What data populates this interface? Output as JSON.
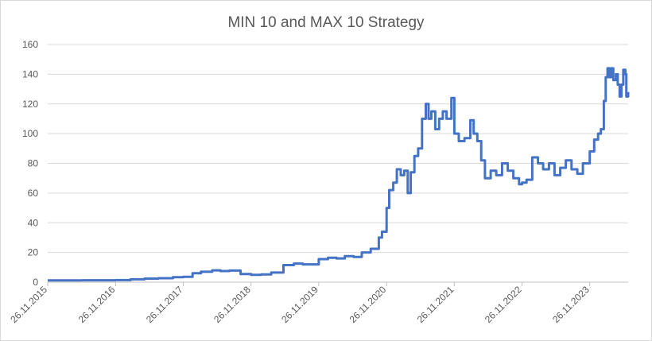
{
  "chart_data": {
    "type": "line",
    "title": "MIN 10 and MAX 10 Strategy",
    "xlabel": "",
    "ylabel": "",
    "xlim": [
      "2015-11-26",
      "2024-06-20"
    ],
    "ylim": [
      0,
      160
    ],
    "yticks": [
      0,
      20,
      40,
      60,
      80,
      100,
      120,
      140,
      160
    ],
    "xtick_labels": [
      "26.11.2015",
      "26.11.2016",
      "26.11.2017",
      "26.11.2018",
      "26.11.2019",
      "26.11.2020",
      "26.11.2021",
      "26.11.2022",
      "26.11.2023"
    ],
    "grid": true,
    "legend": "none",
    "series": [
      {
        "color": "#4472C4",
        "points": [
          [
            "2015-11-26",
            1.2
          ],
          [
            "2016-05-26",
            1.3
          ],
          [
            "2016-11-26",
            1.4
          ],
          [
            "2017-02-15",
            1.9
          ],
          [
            "2017-05-01",
            2.4
          ],
          [
            "2017-07-15",
            2.7
          ],
          [
            "2017-10-01",
            3.3
          ],
          [
            "2017-11-26",
            3.6
          ],
          [
            "2018-01-15",
            6.0
          ],
          [
            "2018-03-01",
            7.0
          ],
          [
            "2018-05-01",
            8.0
          ],
          [
            "2018-06-15",
            7.5
          ],
          [
            "2018-08-01",
            7.8
          ],
          [
            "2018-10-01",
            5.5
          ],
          [
            "2018-11-26",
            5.0
          ],
          [
            "2019-01-20",
            5.2
          ],
          [
            "2019-03-15",
            6.5
          ],
          [
            "2019-05-20",
            11.5
          ],
          [
            "2019-07-15",
            12.5
          ],
          [
            "2019-09-01",
            12.0
          ],
          [
            "2019-11-26",
            15.5
          ],
          [
            "2020-01-15",
            16.5
          ],
          [
            "2020-03-01",
            16.0
          ],
          [
            "2020-04-15",
            17.5
          ],
          [
            "2020-06-01",
            17.0
          ],
          [
            "2020-07-15",
            20.0
          ],
          [
            "2020-09-01",
            22.5
          ],
          [
            "2020-10-15",
            30.0
          ],
          [
            "2020-11-01",
            34.0
          ],
          [
            "2020-11-26",
            50.0
          ],
          [
            "2020-12-10",
            62.0
          ],
          [
            "2021-01-01",
            67.0
          ],
          [
            "2021-01-20",
            76.0
          ],
          [
            "2021-02-10",
            72.0
          ],
          [
            "2021-03-01",
            75.0
          ],
          [
            "2021-03-20",
            60.0
          ],
          [
            "2021-04-05",
            74.0
          ],
          [
            "2021-04-25",
            85.0
          ],
          [
            "2021-05-15",
            90.0
          ],
          [
            "2021-06-05",
            110.0
          ],
          [
            "2021-06-25",
            120.0
          ],
          [
            "2021-07-10",
            110.0
          ],
          [
            "2021-07-25",
            115.0
          ],
          [
            "2021-08-15",
            103.0
          ],
          [
            "2021-09-05",
            110.0
          ],
          [
            "2021-09-25",
            115.0
          ],
          [
            "2021-10-15",
            110.0
          ],
          [
            "2021-11-10",
            124.0
          ],
          [
            "2021-11-26",
            100.0
          ],
          [
            "2021-12-20",
            95.0
          ],
          [
            "2022-01-20",
            97.0
          ],
          [
            "2022-02-20",
            109.0
          ],
          [
            "2022-03-10",
            100.0
          ],
          [
            "2022-03-30",
            95.0
          ],
          [
            "2022-04-20",
            82.0
          ],
          [
            "2022-05-10",
            70.0
          ],
          [
            "2022-06-10",
            75.0
          ],
          [
            "2022-07-10",
            72.0
          ],
          [
            "2022-08-10",
            80.0
          ],
          [
            "2022-09-10",
            75.0
          ],
          [
            "2022-10-10",
            70.0
          ],
          [
            "2022-11-10",
            66.0
          ],
          [
            "2022-11-26",
            67.0
          ],
          [
            "2022-12-20",
            69.0
          ],
          [
            "2023-01-20",
            84.0
          ],
          [
            "2023-02-20",
            80.0
          ],
          [
            "2023-03-20",
            76.0
          ],
          [
            "2023-04-20",
            80.0
          ],
          [
            "2023-05-20",
            72.0
          ],
          [
            "2023-06-20",
            77.0
          ],
          [
            "2023-07-20",
            82.0
          ],
          [
            "2023-08-20",
            76.0
          ],
          [
            "2023-09-20",
            73.0
          ],
          [
            "2023-10-20",
            80.0
          ],
          [
            "2023-11-10",
            80.0
          ],
          [
            "2023-11-26",
            88.0
          ],
          [
            "2023-12-20",
            96.0
          ],
          [
            "2024-01-10",
            100.0
          ],
          [
            "2024-01-25",
            103.0
          ],
          [
            "2024-02-10",
            122.0
          ],
          [
            "2024-02-20",
            138.0
          ],
          [
            "2024-03-01",
            144.0
          ],
          [
            "2024-03-10",
            138.0
          ],
          [
            "2024-03-20",
            144.0
          ],
          [
            "2024-04-01",
            136.0
          ],
          [
            "2024-04-15",
            140.0
          ],
          [
            "2024-04-25",
            133.0
          ],
          [
            "2024-05-05",
            125.0
          ],
          [
            "2024-05-15",
            133.0
          ],
          [
            "2024-05-25",
            143.0
          ],
          [
            "2024-06-05",
            140.0
          ],
          [
            "2024-06-10",
            125.0
          ],
          [
            "2024-06-20",
            128.0
          ]
        ]
      }
    ]
  }
}
